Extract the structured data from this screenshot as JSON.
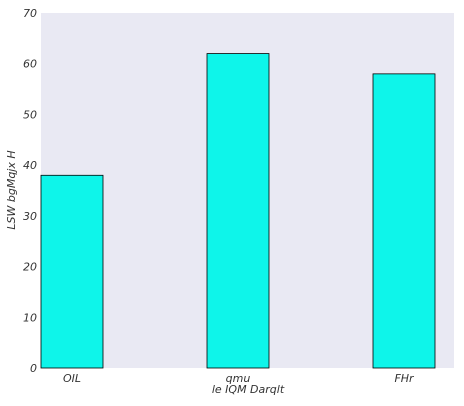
{
  "chart_data": {
    "type": "bar",
    "categories": [
      "OIL",
      "qmu",
      "FHr"
    ],
    "values": [
      38,
      62,
      58
    ],
    "xlabel": "le IQM Darqlt",
    "ylabel": "LSW bgMqjx  H",
    "ylim": [
      0,
      70
    ],
    "yticks": [
      0,
      10,
      20,
      30,
      40,
      50,
      60,
      70
    ],
    "grid": false,
    "colors": {
      "bar_fill": "#0ef5ea",
      "bar_edge": "#000000",
      "plot_background": "#e9e9f3"
    }
  }
}
